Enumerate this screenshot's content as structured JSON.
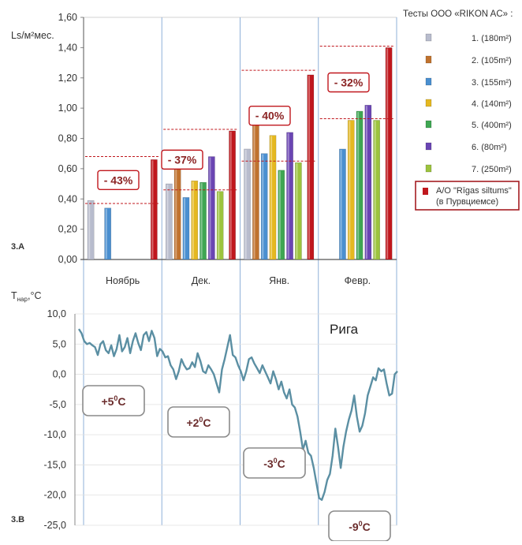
{
  "chart_data": [
    {
      "type": "bar",
      "panel_label": "3.A",
      "ylabel": "Ls/м²мес.",
      "ylim": [
        0,
        1.6
      ],
      "yticks": [
        "0,00",
        "0,20",
        "0,40",
        "0,60",
        "0,80",
        "1,00",
        "1,20",
        "1,40",
        "1,60"
      ],
      "categories": [
        "Ноябрь",
        "Дек.",
        "Янв.",
        "Февр."
      ],
      "legend_title": "Тесты ООО «RIKON AC» :",
      "series": [
        {
          "name": "1.  (180m²)",
          "color": "#b8bccd",
          "values": [
            0.39,
            0.5,
            0.73,
            null
          ]
        },
        {
          "name": "2.  (105m²)",
          "color": "#c0722e",
          "values": [
            null,
            0.63,
            0.9,
            null
          ]
        },
        {
          "name": "3.  (155m²)",
          "color": "#4a8fd0",
          "values": [
            0.34,
            0.41,
            0.7,
            0.73
          ]
        },
        {
          "name": "4.  (140m²)",
          "color": "#e5b820",
          "values": [
            null,
            0.52,
            0.82,
            0.92
          ]
        },
        {
          "name": "5.  (400m²)",
          "color": "#3fa653",
          "values": [
            null,
            0.51,
            0.59,
            0.98
          ]
        },
        {
          "name": "6.  (80m²)",
          "color": "#6a45b3",
          "values": [
            null,
            0.68,
            0.84,
            1.02
          ]
        },
        {
          "name": "7.  (250m²)",
          "color": "#9cc33e",
          "values": [
            null,
            0.45,
            0.64,
            0.92
          ]
        },
        {
          "name": "A/O \"Rīgas siltums\"",
          "name2": "(в Пурвциемсе)",
          "color": "#c0171d",
          "values": [
            0.66,
            0.85,
            1.22,
            1.4
          ]
        }
      ],
      "annotations": [
        {
          "label": "- 43%",
          "category": 0,
          "high": 0.68,
          "low": 0.37
        },
        {
          "label": "- 37%",
          "category": 1,
          "high": 0.86,
          "low": 0.46
        },
        {
          "label": "- 40%",
          "category": 2,
          "high": 1.25,
          "low": 0.65
        },
        {
          "label": "- 32%",
          "category": 3,
          "high": 1.41,
          "low": 0.93
        }
      ]
    },
    {
      "type": "line",
      "panel_label": "3.B",
      "ylabel": "Tнар,°C",
      "ylabel_main": "T",
      "ylabel_sub": "нар",
      "ylabel_tail": ",°C",
      "city_label": "Рига",
      "ylim": [
        -25,
        10
      ],
      "yticks": [
        "10,0",
        "5,0",
        "0,0",
        "-5,0",
        "-10,0",
        "-15,0",
        "-20,0",
        "-25,0"
      ],
      "series_color": "#5b8fa3",
      "values": [
        7.5,
        6.8,
        5.5,
        5.0,
        5.2,
        4.8,
        4.5,
        3.2,
        5.0,
        5.5,
        4.0,
        3.5,
        4.8,
        3.0,
        4.2,
        6.5,
        3.8,
        4.5,
        6.0,
        3.5,
        5.5,
        6.8,
        5.2,
        4.0,
        6.5,
        7.0,
        5.5,
        7.2,
        6.0,
        3.0,
        4.2,
        3.8,
        2.8,
        3.0,
        1.5,
        0.8,
        -0.8,
        0.5,
        2.5,
        1.5,
        0.8,
        1.0,
        2.0,
        1.2,
        3.5,
        2.2,
        0.5,
        0.2,
        1.5,
        0.8,
        0.0,
        -1.5,
        -3.0,
        0.8,
        2.5,
        4.5,
        6.5,
        3.2,
        2.8,
        1.5,
        0.5,
        -1.0,
        0.5,
        2.5,
        2.8,
        1.8,
        1.0,
        0.2,
        1.5,
        0.5,
        -0.5,
        -1.5,
        0.5,
        -0.8,
        -2.5,
        -1.2,
        -3.0,
        -4.0,
        -2.5,
        -5.0,
        -5.5,
        -7.0,
        -9.5,
        -12.5,
        -11.0,
        -13.0,
        -13.5,
        -15.5,
        -18.0,
        -20.5,
        -20.8,
        -19.5,
        -17.5,
        -16.5,
        -13.5,
        -9.0,
        -12.0,
        -15.5,
        -12.0,
        -9.5,
        -7.5,
        -6.0,
        -3.5,
        -7.0,
        -9.5,
        -8.5,
        -6.5,
        -3.5,
        -2.0,
        -0.5,
        -1.0,
        1.0,
        0.5,
        0.8,
        -1.5,
        -3.5,
        -3.2,
        0.0,
        0.5
      ],
      "annotations": [
        {
          "label": "+5°C",
          "text": "+5",
          "sup": "0",
          "tail": "C"
        },
        {
          "label": "+2°C",
          "text": "+2",
          "sup": "0",
          "tail": "C"
        },
        {
          "label": "-3°C",
          "text": "-3",
          "sup": "0",
          "tail": "C"
        },
        {
          "label": "-9°C",
          "text": "-9",
          "sup": "0",
          "tail": "C"
        }
      ]
    }
  ]
}
